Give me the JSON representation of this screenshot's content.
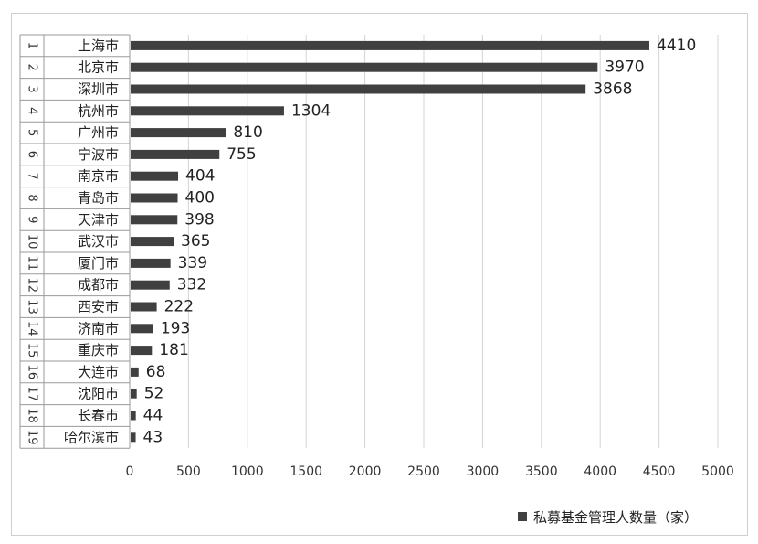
{
  "chart_data": {
    "type": "bar",
    "orientation": "horizontal",
    "title": "",
    "xlabel": "",
    "ylabel": "",
    "ranks": [
      "1",
      "2",
      "3",
      "4",
      "5",
      "6",
      "7",
      "8",
      "9",
      "10",
      "11",
      "12",
      "13",
      "14",
      "15",
      "16",
      "17",
      "18",
      "19"
    ],
    "categories": [
      "上海市",
      "北京市",
      "深圳市",
      "杭州市",
      "广州市",
      "宁波市",
      "南京市",
      "青岛市",
      "天津市",
      "武汉市",
      "厦门市",
      "成都市",
      "西安市",
      "济南市",
      "重庆市",
      "大连市",
      "沈阳市",
      "长春市",
      "哈尔滨市"
    ],
    "series": [
      {
        "name": "私募基金管理人数量（家）",
        "values": [
          4410,
          3970,
          3868,
          1304,
          810,
          755,
          404,
          400,
          398,
          365,
          339,
          332,
          222,
          193,
          181,
          68,
          52,
          44,
          43
        ]
      }
    ],
    "xlim": [
      0,
      5000
    ],
    "xticks": [
      0,
      500,
      1000,
      1500,
      2000,
      2500,
      3000,
      3500,
      4000,
      4500,
      5000
    ],
    "grid": true,
    "legend": "bottom-right",
    "bar_color": "#404040"
  }
}
